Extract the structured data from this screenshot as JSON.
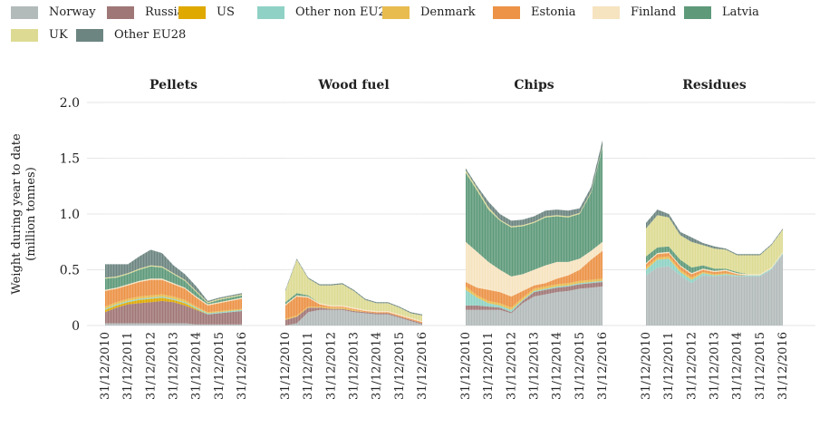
{
  "chart_data": {
    "type": "area",
    "stacked": true,
    "ylabel_lines": [
      "Weight during year to date",
      "(million tonnes)"
    ],
    "ylim": [
      0,
      2.0
    ],
    "yticks": [
      "0",
      "0.5",
      "1.0",
      "1.5",
      "2.0"
    ],
    "grid": true,
    "legend_position": "top",
    "legend": [
      {
        "name": "Norway",
        "color": "#b3bbba"
      },
      {
        "name": "Russia",
        "color": "#a07777"
      },
      {
        "name": "US",
        "color": "#dfa900"
      },
      {
        "name": "Other non EU28",
        "color": "#8fd2c5"
      },
      {
        "name": "Denmark",
        "color": "#e8bc4f"
      },
      {
        "name": "Estonia",
        "color": "#ec9347"
      },
      {
        "name": "Finland",
        "color": "#f6e3bf"
      },
      {
        "name": "Latvia",
        "color": "#5e9a7a"
      },
      {
        "name": "UK",
        "color": "#dddb93"
      },
      {
        "name": "Other EU28",
        "color": "#6c8580"
      }
    ],
    "x_tick_labels": [
      "31/12/2010",
      "31/12/2011",
      "31/12/2012",
      "31/12/2013",
      "31/12/2014",
      "31/12/2015",
      "31/12/2016"
    ],
    "x_dates": [
      "2010-12-31",
      "2011-06-30",
      "2011-12-31",
      "2012-06-30",
      "2012-12-31",
      "2013-06-30",
      "2013-12-31",
      "2014-06-30",
      "2014-12-31",
      "2015-06-30",
      "2015-12-31",
      "2016-06-30",
      "2016-12-31"
    ],
    "panels": [
      {
        "title": "Pellets",
        "series": [
          {
            "name": "Norway",
            "values": [
              0.02,
              0.02,
              0.02,
              0.02,
              0.02,
              0.02,
              0.02,
              0.02,
              0.01,
              0.01,
              0.01,
              0.01,
              0.01
            ]
          },
          {
            "name": "Russia",
            "values": [
              0.1,
              0.14,
              0.17,
              0.18,
              0.19,
              0.2,
              0.19,
              0.16,
              0.13,
              0.09,
              0.1,
              0.11,
              0.12
            ]
          },
          {
            "name": "US",
            "values": [
              0.02,
              0.02,
              0.02,
              0.03,
              0.03,
              0.03,
              0.02,
              0.02,
              0.01,
              0.0,
              0.0,
              0.0,
              0.0
            ]
          },
          {
            "name": "Other non EU28",
            "values": [
              0.01,
              0.01,
              0.01,
              0.01,
              0.01,
              0.01,
              0.01,
              0.01,
              0.01,
              0.01,
              0.01,
              0.01,
              0.01
            ]
          },
          {
            "name": "Denmark",
            "values": [
              0.02,
              0.02,
              0.02,
              0.02,
              0.02,
              0.02,
              0.02,
              0.02,
              0.01,
              0.01,
              0.01,
              0.01,
              0.01
            ]
          },
          {
            "name": "Estonia",
            "values": [
              0.14,
              0.12,
              0.12,
              0.13,
              0.14,
              0.13,
              0.11,
              0.1,
              0.08,
              0.06,
              0.07,
              0.08,
              0.09
            ]
          },
          {
            "name": "Finland",
            "values": [
              0.01,
              0.01,
              0.01,
              0.01,
              0.01,
              0.01,
              0.01,
              0.01,
              0.01,
              0.01,
              0.01,
              0.01,
              0.01
            ]
          },
          {
            "name": "Latvia",
            "values": [
              0.1,
              0.09,
              0.09,
              0.1,
              0.11,
              0.1,
              0.08,
              0.06,
              0.04,
              0.01,
              0.02,
              0.02,
              0.02
            ]
          },
          {
            "name": "UK",
            "values": [
              0.01,
              0.01,
              0.01,
              0.01,
              0.01,
              0.01,
              0.01,
              0.01,
              0.01,
              0.01,
              0.01,
              0.01,
              0.01
            ]
          },
          {
            "name": "Other EU28",
            "values": [
              0.12,
              0.11,
              0.08,
              0.11,
              0.14,
              0.12,
              0.07,
              0.05,
              0.04,
              0.01,
              0.01,
              0.01,
              0.01
            ]
          }
        ]
      },
      {
        "title": "Wood fuel",
        "series": [
          {
            "name": "Norway",
            "values": [
              0.0,
              0.02,
              0.12,
              0.14,
              0.14,
              0.14,
              0.12,
              0.11,
              0.1,
              0.1,
              0.07,
              0.04,
              0.01
            ]
          },
          {
            "name": "Russia",
            "values": [
              0.05,
              0.06,
              0.04,
              0.02,
              0.01,
              0.01,
              0.01,
              0.01,
              0.01,
              0.01,
              0.01,
              0.01,
              0.01
            ]
          },
          {
            "name": "US",
            "values": [
              0,
              0,
              0,
              0,
              0,
              0,
              0,
              0,
              0,
              0,
              0,
              0,
              0
            ]
          },
          {
            "name": "Other non EU28",
            "values": [
              0,
              0,
              0,
              0,
              0,
              0,
              0,
              0,
              0,
              0,
              0,
              0,
              0
            ]
          },
          {
            "name": "Denmark",
            "values": [
              0.01,
              0.01,
              0.01,
              0.01,
              0.01,
              0.01,
              0.01,
              0.0,
              0.0,
              0.0,
              0.0,
              0.0,
              0.0
            ]
          },
          {
            "name": "Estonia",
            "values": [
              0.12,
              0.17,
              0.08,
              0.02,
              0.01,
              0.01,
              0.01,
              0.01,
              0.01,
              0.01,
              0.01,
              0.01,
              0.01
            ]
          },
          {
            "name": "Finland",
            "values": [
              0.01,
              0.01,
              0.01,
              0.01,
              0.01,
              0.01,
              0.01,
              0.01,
              0.01,
              0.01,
              0.01,
              0.01,
              0.01
            ]
          },
          {
            "name": "Latvia",
            "values": [
              0.02,
              0.02,
              0.01,
              0.0,
              0.0,
              0.0,
              0.0,
              0.0,
              0.0,
              0.0,
              0.0,
              0.0,
              0.0
            ]
          },
          {
            "name": "UK",
            "values": [
              0.1,
              0.3,
              0.15,
              0.16,
              0.18,
              0.19,
              0.15,
              0.09,
              0.07,
              0.07,
              0.06,
              0.04,
              0.05
            ]
          },
          {
            "name": "Other EU28",
            "values": [
              0.01,
              0.01,
              0.01,
              0.01,
              0.01,
              0.01,
              0.01,
              0.01,
              0.01,
              0.01,
              0.01,
              0.01,
              0.01
            ]
          }
        ]
      },
      {
        "title": "Chips",
        "series": [
          {
            "name": "Norway",
            "values": [
              0.14,
              0.14,
              0.14,
              0.14,
              0.11,
              0.2,
              0.26,
              0.28,
              0.3,
              0.31,
              0.33,
              0.34,
              0.35
            ]
          },
          {
            "name": "Russia",
            "values": [
              0.04,
              0.04,
              0.03,
              0.02,
              0.01,
              0.02,
              0.04,
              0.04,
              0.04,
              0.04,
              0.04,
              0.04,
              0.04
            ]
          },
          {
            "name": "US",
            "values": [
              0,
              0,
              0,
              0,
              0,
              0,
              0,
              0,
              0,
              0,
              0,
              0,
              0
            ]
          },
          {
            "name": "Other non EU28",
            "values": [
              0.14,
              0.07,
              0.03,
              0.02,
              0.02,
              0.01,
              0.01,
              0.01,
              0.01,
              0.01,
              0.01,
              0.01,
              0.01
            ]
          },
          {
            "name": "Denmark",
            "values": [
              0.03,
              0.02,
              0.02,
              0.02,
              0.02,
              0.02,
              0.02,
              0.02,
              0.02,
              0.02,
              0.02,
              0.02,
              0.02
            ]
          },
          {
            "name": "Estonia",
            "values": [
              0.04,
              0.07,
              0.1,
              0.1,
              0.1,
              0.06,
              0.03,
              0.03,
              0.05,
              0.07,
              0.1,
              0.18,
              0.25
            ]
          },
          {
            "name": "Finland",
            "values": [
              0.36,
              0.32,
              0.25,
              0.2,
              0.18,
              0.15,
              0.14,
              0.16,
              0.15,
              0.12,
              0.1,
              0.08,
              0.08
            ]
          },
          {
            "name": "Latvia",
            "values": [
              0.62,
              0.55,
              0.47,
              0.44,
              0.44,
              0.43,
              0.42,
              0.43,
              0.41,
              0.4,
              0.4,
              0.52,
              0.85
            ]
          },
          {
            "name": "UK",
            "values": [
              0.02,
              0.02,
              0.02,
              0.01,
              0.01,
              0.01,
              0.01,
              0.01,
              0.01,
              0.01,
              0.01,
              0.01,
              0.01
            ]
          },
          {
            "name": "Other EU28",
            "values": [
              0.02,
              0.02,
              0.05,
              0.05,
              0.05,
              0.05,
              0.05,
              0.05,
              0.05,
              0.05,
              0.04,
              0.04,
              0.05
            ]
          }
        ]
      },
      {
        "title": "Residues",
        "series": [
          {
            "name": "Norway",
            "values": [
              0.45,
              0.52,
              0.53,
              0.45,
              0.38,
              0.45,
              0.44,
              0.45,
              0.44,
              0.44,
              0.44,
              0.5,
              0.64
            ]
          },
          {
            "name": "Russia",
            "values": [
              0,
              0,
              0,
              0,
              0,
              0,
              0,
              0,
              0,
              0,
              0,
              0,
              0
            ]
          },
          {
            "name": "US",
            "values": [
              0,
              0,
              0,
              0,
              0,
              0,
              0,
              0,
              0,
              0,
              0,
              0,
              0
            ]
          },
          {
            "name": "Other non EU28",
            "values": [
              0.05,
              0.07,
              0.07,
              0.03,
              0.03,
              0.02,
              0.01,
              0.01,
              0.01,
              0.01,
              0.01,
              0.01,
              0.01
            ]
          },
          {
            "name": "Denmark",
            "values": [
              0.02,
              0.02,
              0.02,
              0.02,
              0.02,
              0.01,
              0.01,
              0.01,
              0.0,
              0.0,
              0.0,
              0.0,
              0.0
            ]
          },
          {
            "name": "Estonia",
            "values": [
              0.03,
              0.03,
              0.03,
              0.03,
              0.03,
              0.02,
              0.02,
              0.02,
              0.01,
              0.0,
              0.0,
              0.0,
              0.0
            ]
          },
          {
            "name": "Finland",
            "values": [
              0.01,
              0.01,
              0.01,
              0.01,
              0.01,
              0.01,
              0.01,
              0.01,
              0.01,
              0.01,
              0.01,
              0.01,
              0.01
            ]
          },
          {
            "name": "Latvia",
            "values": [
              0.06,
              0.05,
              0.05,
              0.05,
              0.05,
              0.03,
              0.02,
              0.01,
              0.01,
              0.0,
              0.0,
              0.0,
              0.0
            ]
          },
          {
            "name": "UK",
            "values": [
              0.25,
              0.29,
              0.26,
              0.22,
              0.23,
              0.18,
              0.18,
              0.17,
              0.15,
              0.17,
              0.17,
              0.2,
              0.2
            ]
          },
          {
            "name": "Other EU28",
            "values": [
              0.05,
              0.05,
              0.03,
              0.03,
              0.04,
              0.02,
              0.02,
              0.01,
              0.01,
              0.01,
              0.01,
              0.01,
              0.01
            ]
          }
        ]
      }
    ]
  }
}
